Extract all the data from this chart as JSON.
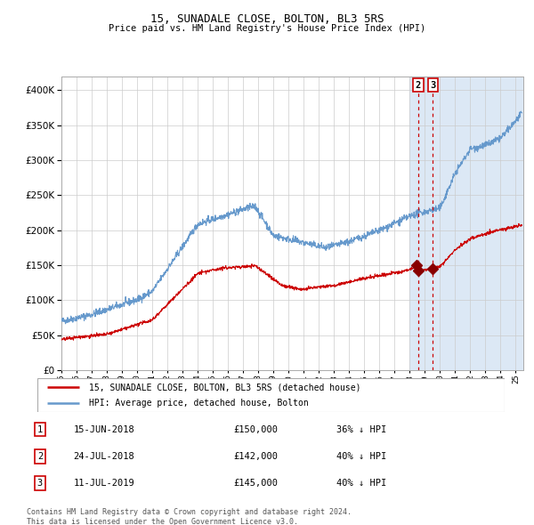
{
  "title": "15, SUNADALE CLOSE, BOLTON, BL3 5RS",
  "subtitle": "Price paid vs. HM Land Registry's House Price Index (HPI)",
  "footer1": "Contains HM Land Registry data © Crown copyright and database right 2024.",
  "footer2": "This data is licensed under the Open Government Licence v3.0.",
  "legend_red": "15, SUNADALE CLOSE, BOLTON, BL3 5RS (detached house)",
  "legend_blue": "HPI: Average price, detached house, Bolton",
  "transactions": [
    {
      "num": 1,
      "date": "15-JUN-2018",
      "price": "£150,000",
      "pct": "36% ↓ HPI",
      "year": 2018.45
    },
    {
      "num": 2,
      "date": "24-JUL-2018",
      "price": "£142,000",
      "pct": "40% ↓ HPI",
      "year": 2018.56
    },
    {
      "num": 3,
      "date": "11-JUL-2019",
      "price": "£145,000",
      "pct": "40% ↓ HPI",
      "year": 2019.53
    }
  ],
  "sale_prices": [
    150000,
    142000,
    145000
  ],
  "sale_years": [
    2018.45,
    2018.56,
    2019.53
  ],
  "ylim": [
    0,
    420000
  ],
  "xlim_start": 1995.0,
  "xlim_end": 2025.5,
  "bg_shade_start": 2018.0,
  "bg_shade_end": 2025.5,
  "red_line_color": "#cc0000",
  "blue_line_color": "#6699cc",
  "bg_shade_color": "#dce8f5",
  "marker_color": "#880000",
  "vline_color": "#cc0000",
  "grid_color": "#cccccc",
  "box_color": "#cc0000",
  "yticks": [
    0,
    50000,
    100000,
    150000,
    200000,
    250000,
    300000,
    350000,
    400000
  ]
}
